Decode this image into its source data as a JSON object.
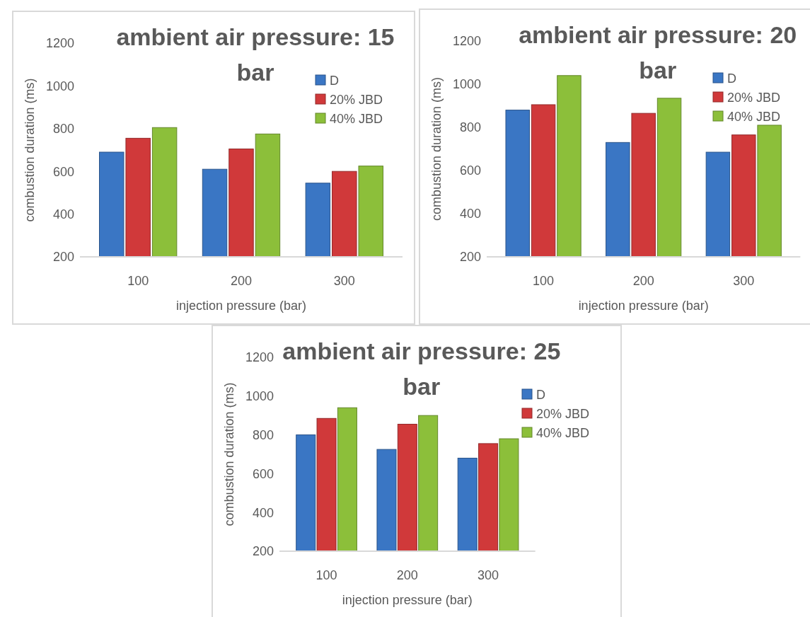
{
  "chart_data": [
    {
      "type": "bar",
      "title": "ambient air pressure: 15 bar",
      "xlabel": "injection pressure (bar)",
      "ylabel": "combustion duration (ms)",
      "categories": [
        "100",
        "200",
        "300"
      ],
      "ylim": [
        200,
        1200
      ],
      "yticks": [
        200,
        400,
        600,
        800,
        1000,
        1200
      ],
      "grid": false,
      "legend": "top right",
      "series": [
        {
          "name": "D",
          "color": "#3a76c4",
          "values": [
            690,
            610,
            545
          ]
        },
        {
          "name": "20% JBD",
          "color": "#d0393a",
          "values": [
            755,
            705,
            600
          ]
        },
        {
          "name": "40% JBD",
          "color": "#8cbf3a",
          "values": [
            805,
            775,
            625
          ]
        }
      ]
    },
    {
      "type": "bar",
      "title": "ambient air pressure: 20 bar",
      "xlabel": "injection pressure (bar)",
      "ylabel": "combustion duration (ms)",
      "categories": [
        "100",
        "200",
        "300"
      ],
      "ylim": [
        200,
        1200
      ],
      "yticks": [
        200,
        400,
        600,
        800,
        1000,
        1200
      ],
      "grid": false,
      "legend": "top right",
      "series": [
        {
          "name": "D",
          "color": "#3a76c4",
          "values": [
            880,
            730,
            685
          ]
        },
        {
          "name": "20% JBD",
          "color": "#d0393a",
          "values": [
            905,
            865,
            765
          ]
        },
        {
          "name": "40% JBD",
          "color": "#8cbf3a",
          "values": [
            1040,
            935,
            810
          ]
        }
      ]
    },
    {
      "type": "bar",
      "title": "ambient air pressure: 25 bar",
      "xlabel": "injection pressure (bar)",
      "ylabel": "combustion duration (ms)",
      "categories": [
        "100",
        "200",
        "300"
      ],
      "ylim": [
        200,
        1200
      ],
      "yticks": [
        200,
        400,
        600,
        800,
        1000,
        1200
      ],
      "grid": false,
      "legend": "top right",
      "series": [
        {
          "name": "D",
          "color": "#3a76c4",
          "values": [
            800,
            725,
            680
          ]
        },
        {
          "name": "20% JBD",
          "color": "#d0393a",
          "values": [
            885,
            855,
            755
          ]
        },
        {
          "name": "40% JBD",
          "color": "#8cbf3a",
          "values": [
            940,
            900,
            780
          ]
        }
      ]
    }
  ]
}
